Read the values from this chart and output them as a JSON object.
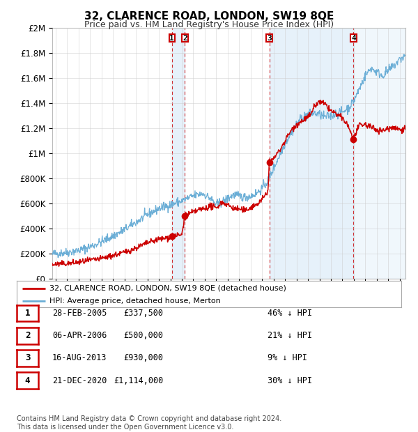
{
  "title": "32, CLARENCE ROAD, LONDON, SW19 8QE",
  "subtitle": "Price paid vs. HM Land Registry's House Price Index (HPI)",
  "hpi_color": "#6baed6",
  "hpi_fill_color": "#d6e9f8",
  "price_color": "#cc0000",
  "ylim": [
    0,
    2000000
  ],
  "yticks": [
    0,
    200000,
    400000,
    600000,
    800000,
    1000000,
    1200000,
    1400000,
    1600000,
    1800000,
    2000000
  ],
  "ytick_labels": [
    "£0",
    "£200K",
    "£400K",
    "£600K",
    "£800K",
    "£1M",
    "£1.2M",
    "£1.4M",
    "£1.6M",
    "£1.8M",
    "£2M"
  ],
  "xlim_start": 1994.7,
  "xlim_end": 2025.5,
  "transactions": [
    {
      "date": 2005.13,
      "price": 337500,
      "label": "1"
    },
    {
      "date": 2006.27,
      "price": 500000,
      "label": "2"
    },
    {
      "date": 2013.63,
      "price": 930000,
      "label": "3"
    },
    {
      "date": 2020.97,
      "price": 1114000,
      "label": "4"
    }
  ],
  "vlines": [
    2005.13,
    2006.27,
    2013.63,
    2020.97
  ],
  "legend_price_label": "32, CLARENCE ROAD, LONDON, SW19 8QE (detached house)",
  "legend_hpi_label": "HPI: Average price, detached house, Merton",
  "table_rows": [
    {
      "num": "1",
      "date": "28-FEB-2005",
      "price": "£337,500",
      "pct": "46% ↓ HPI"
    },
    {
      "num": "2",
      "date": "06-APR-2006",
      "price": "£500,000",
      "pct": "21% ↓ HPI"
    },
    {
      "num": "3",
      "date": "16-AUG-2013",
      "price": "£930,000",
      "pct": "9% ↓ HPI"
    },
    {
      "num": "4",
      "date": "21-DEC-2020",
      "price": "£1,114,000",
      "pct": "30% ↓ HPI"
    }
  ],
  "footnote": "Contains HM Land Registry data © Crown copyright and database right 2024.\nThis data is licensed under the Open Government Licence v3.0.",
  "background_color": "#ffffff",
  "grid_color": "#cccccc"
}
